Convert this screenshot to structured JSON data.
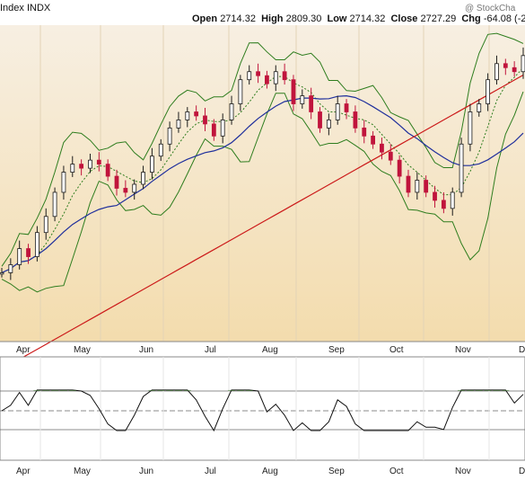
{
  "header": {
    "symbol_text": "Index INDX",
    "watermark": "@ StockCha",
    "ohlc": [
      {
        "label": "Open",
        "value": "2714.32"
      },
      {
        "label": "High",
        "value": "2809.30"
      },
      {
        "label": "Low",
        "value": "2714.32"
      },
      {
        "label": "Close",
        "value": "2727.29"
      },
      {
        "label": "Chg",
        "value": "-64.08 (-2"
      }
    ]
  },
  "colors": {
    "price_bg_top": "#f7efe2",
    "price_bg_mid": "#f3dcad",
    "up_candle": "#1a1a1a",
    "down_candle": "#c0143c",
    "bollinger": "#2e7d1e",
    "ma_short": "#2e7d1e",
    "ma_mid": "#1f2f9c",
    "ma_long": "#cc1a1a",
    "indicator_line": "#111111",
    "indicator_fill": "#3a7a2a"
  },
  "chart_data": {
    "type": "candlestick",
    "x_tick_labels": [
      "Apr",
      "May",
      "Jun",
      "Jul",
      "Aug",
      "Sep",
      "Oct",
      "Nov",
      "Dec"
    ],
    "price_series_approx": [
      2600,
      2610,
      2630,
      2620,
      2650,
      2670,
      2700,
      2725,
      2735,
      2730,
      2740,
      2735,
      2720,
      2705,
      2700,
      2710,
      2725,
      2745,
      2760,
      2780,
      2790,
      2800,
      2795,
      2785,
      2770,
      2790,
      2810,
      2840,
      2850,
      2845,
      2835,
      2850,
      2840,
      2810,
      2820,
      2800,
      2780,
      2790,
      2810,
      2800,
      2780,
      2770,
      2760,
      2750,
      2740,
      2720,
      2700,
      2715,
      2700,
      2690,
      2680,
      2700,
      2760,
      2800,
      2810,
      2840,
      2860,
      2855,
      2850,
      2870
    ],
    "series": [
      {
        "name": "",
        "kind": "bollinger_upper"
      },
      {
        "name": "",
        "kind": "bollinger_lower"
      },
      {
        "name": "",
        "kind": "moving_average_short"
      },
      {
        "name": "",
        "kind": "moving_average_mid"
      },
      {
        "name": "",
        "kind": "moving_average_long"
      }
    ],
    "indicator": {
      "type": "oscillator",
      "levels": [
        "upper",
        "middle",
        "lower"
      ]
    }
  }
}
